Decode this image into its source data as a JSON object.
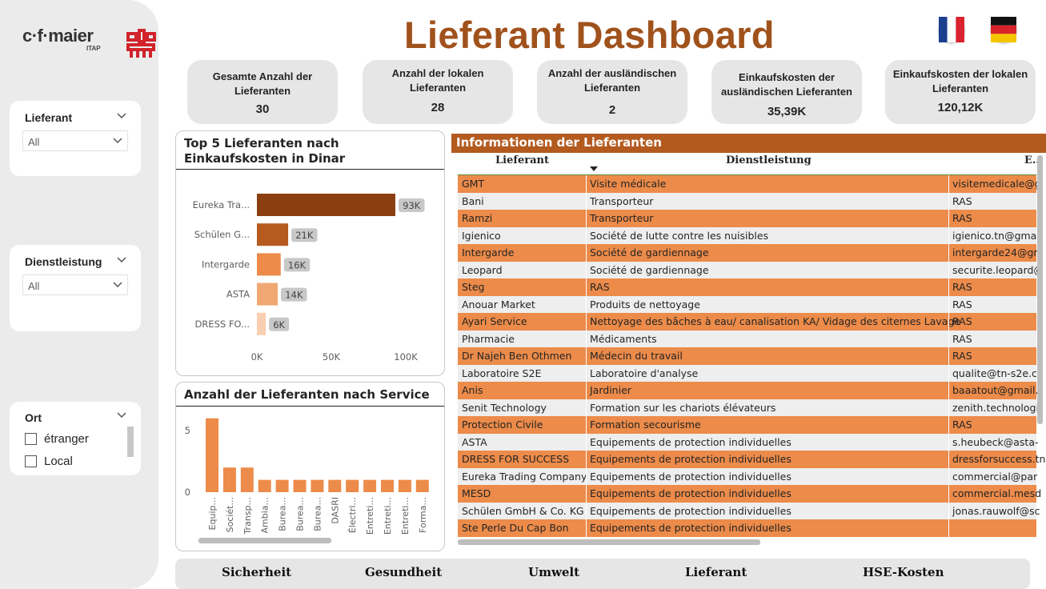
{
  "logo": {
    "brand": "c·f·maier",
    "sub": "ITAP"
  },
  "title": "Lieferant Dashboard",
  "flags": [
    "france-flag-icon",
    "germany-flag-icon"
  ],
  "slicers": {
    "lieferant": {
      "title": "Lieferant",
      "value": "All"
    },
    "dienstleistung": {
      "title": "Dienstleistung",
      "value": "All"
    },
    "ort": {
      "title": "Ort",
      "options": [
        "étranger",
        "Local"
      ]
    }
  },
  "kpis": [
    {
      "label": "Gesamte Anzahl der Lieferanten",
      "value": "30"
    },
    {
      "label": "Anzahl der lokalen Lieferanten",
      "value": "28"
    },
    {
      "label": "Anzahl der ausländischen Lieferanten",
      "value": "2"
    },
    {
      "label": "Einkaufskosten der ausländischen Lieferanten",
      "value": "35,39K"
    },
    {
      "label": "Einkaufskosten der lokalen Lieferanten",
      "value": "120,12K"
    }
  ],
  "bar_chart_title": "Top 5 Lieferanten nach Einkaufskosten in Dinar",
  "column_chart_title": "Anzahl der Lieferanten nach Service",
  "chart_data": [
    {
      "type": "bar",
      "title": "Top 5 Lieferanten nach Einkaufskosten in Dinar",
      "categories": [
        "Eureka Tra...",
        "Schülen G...",
        "Intergarde",
        "ASTA",
        "DRESS FO..."
      ],
      "values": [
        93000,
        21000,
        16000,
        14000,
        6000
      ],
      "data_labels": [
        "93K",
        "21K",
        "16K",
        "14K",
        "6K"
      ],
      "xticks": [
        "0K",
        "50K",
        "100K"
      ],
      "xlim": [
        0,
        100000
      ],
      "colors": [
        "#8b3e10",
        "#b65a1f",
        "#ec8b4a",
        "#f0a772",
        "#f8cfb0"
      ]
    },
    {
      "type": "bar",
      "title": "Anzahl der Lieferanten nach Service",
      "categories": [
        "Equip...",
        "Sociét...",
        "Transp...",
        "Ambia...",
        "Burea...",
        "Burea...",
        "Burea...",
        "DASRI",
        "Électri...",
        "Entreti...",
        "Entreti...",
        "Entreti...",
        "Forma..."
      ],
      "values": [
        6,
        2,
        2,
        1,
        1,
        1,
        1,
        1,
        1,
        1,
        1,
        1,
        1
      ],
      "yticks": [
        "0",
        "5"
      ],
      "ylim": [
        0,
        6.5
      ],
      "color": "#ec8b4a"
    }
  ],
  "table": {
    "title": "Informationen der Lieferanten",
    "columns": [
      "Lieferant",
      "Dienstleistung",
      "E..."
    ],
    "rows": [
      [
        "GMT",
        "Visite médicale",
        "visitemedicale@g"
      ],
      [
        "Bani",
        "Transporteur",
        "RAS"
      ],
      [
        "Ramzi",
        "Transporteur",
        "RAS"
      ],
      [
        "Igienico",
        "Société de lutte contre les nuisibles",
        "igienico.tn@gma"
      ],
      [
        "Intergarde",
        "Société de gardiennage",
        "intergarde24@gr"
      ],
      [
        "Leopard",
        "Société de gardiennage",
        "securite.leopard@"
      ],
      [
        "Steg",
        "RAS",
        "RAS"
      ],
      [
        "Anouar Market",
        "Produits de nettoyage",
        "RAS"
      ],
      [
        "Ayari Service",
        "Nettoyage des bâches à eau/ canalisation KA/ Vidage des citernes Lavage",
        "RAS"
      ],
      [
        "Pharmacie",
        "Médicaments",
        "RAS"
      ],
      [
        "Dr Najeh Ben Othmen",
        "Médecin du travail",
        "RAS"
      ],
      [
        "Laboratoire S2E",
        "Laboratoire d'analyse",
        "qualite@tn-s2e.co"
      ],
      [
        "Anis",
        "Jardinier",
        "baaatout@gmail."
      ],
      [
        "Senit Technology",
        "Formation sur les chariots élévateurs",
        "zenith.technologi"
      ],
      [
        "Protection Civile",
        "Formation secourisme",
        "RAS"
      ],
      [
        "ASTA",
        "Equipements de protection individuelles",
        "s.heubeck@asta-"
      ],
      [
        "DRESS FOR SUCCESS",
        "Equipements de protection individuelles",
        "dressforsuccess.tn"
      ],
      [
        "Eureka Trading Company",
        "Equipements de protection individuelles",
        "commercial@par"
      ],
      [
        "MESD",
        "Equipements de protection individuelles",
        "commercial.mesd"
      ],
      [
        "Schülen GmbH & Co. KG",
        "Equipements de protection individuelles",
        "jonas.rauwolf@sc"
      ],
      [
        "Ste Perle Du Cap Bon",
        "Equipements de protection individuelles",
        ""
      ]
    ]
  },
  "nav": [
    "Sicherheit",
    "Gesundheit",
    "Umwelt",
    "Lieferant",
    "HSE-Kosten"
  ]
}
